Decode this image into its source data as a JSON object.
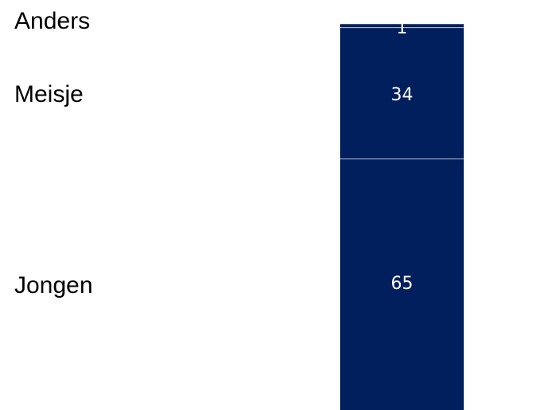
{
  "chart_data": {
    "type": "bar",
    "stacked": true,
    "categories": [
      ""
    ],
    "series": [
      {
        "name": "Jongen",
        "values": [
          65
        ]
      },
      {
        "name": "Meisje",
        "values": [
          34
        ]
      },
      {
        "name": "Anders",
        "values": [
          1
        ]
      }
    ],
    "data_labels": [
      "65",
      "34",
      "1"
    ],
    "colors": {
      "bar": "#001f5c",
      "separator": "#ffffff",
      "label": "#ffffff"
    },
    "ylim": [
      0,
      100
    ],
    "grid": false
  }
}
